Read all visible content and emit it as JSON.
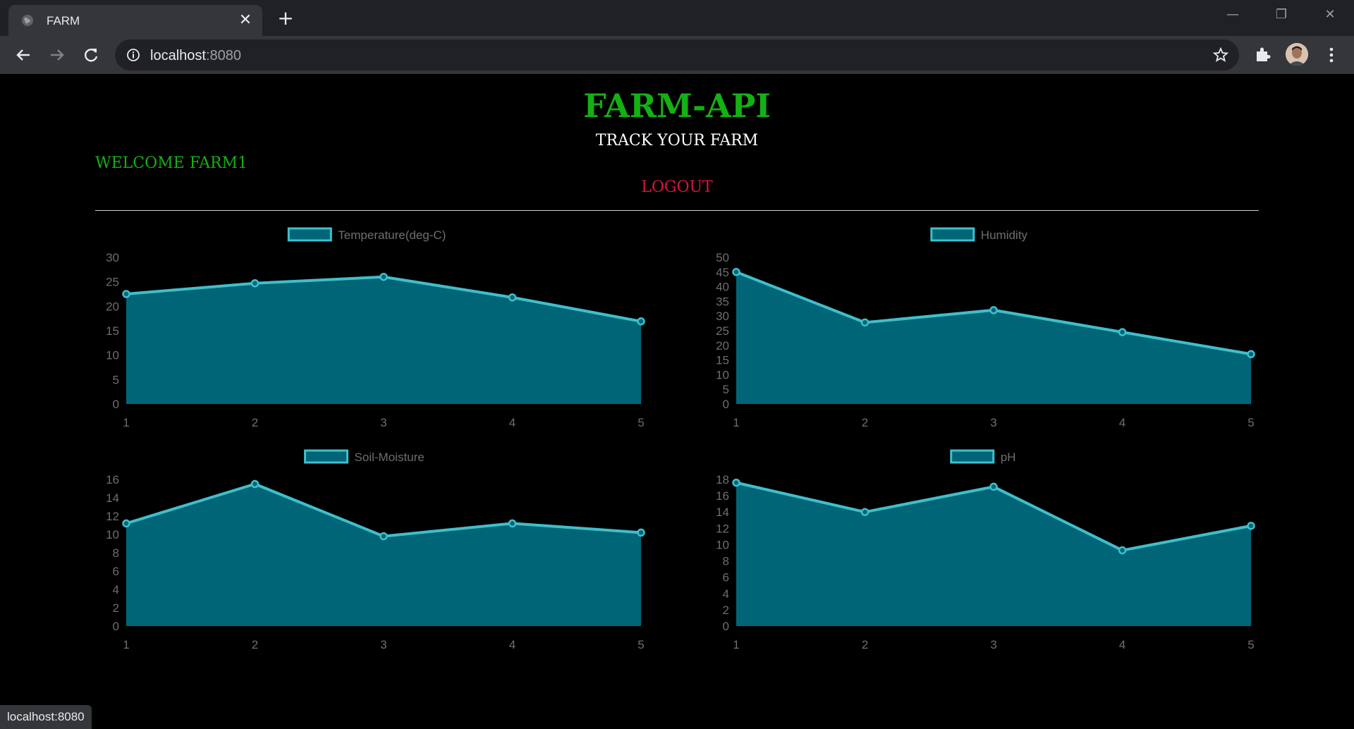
{
  "browser": {
    "tab_title": "FARM",
    "url_host": "localhost",
    "url_port": ":8080",
    "status_text": "localhost:8080",
    "icons": [
      "globe-icon",
      "close-icon",
      "plus-icon",
      "minimize-icon",
      "restore-icon",
      "back-icon",
      "forward-icon",
      "reload-icon",
      "info-icon",
      "star-icon",
      "extensions-icon",
      "avatar",
      "menu-icon"
    ]
  },
  "page": {
    "title": "FARM-API",
    "subtitle": "TRACK YOUR FARM",
    "welcome": "WELCOME FARM1",
    "logout": "LOGOUT"
  },
  "colors": {
    "title": "#14b014",
    "logout": "#dc143c",
    "series_line": "#3fbfcc",
    "series_fill": "#006677"
  },
  "chart_data": [
    {
      "type": "area",
      "legend": [
        "Temperature(deg-C)"
      ],
      "legend_position": "top",
      "x": [
        1,
        2,
        3,
        4,
        5
      ],
      "yticks": [
        0,
        5,
        10,
        15,
        20,
        25,
        30
      ],
      "ylim": [
        0,
        30
      ],
      "series": [
        {
          "name": "Temperature(deg-C)",
          "values": [
            22.5,
            24.7,
            26,
            21.8,
            16.9
          ]
        }
      ]
    },
    {
      "type": "area",
      "legend": [
        "Humidity"
      ],
      "legend_position": "top",
      "x": [
        1,
        2,
        3,
        4,
        5
      ],
      "yticks": [
        0,
        5,
        10,
        15,
        20,
        25,
        30,
        35,
        40,
        45,
        50
      ],
      "ylim": [
        0,
        50
      ],
      "series": [
        {
          "name": "Humidity",
          "values": [
            45,
            27.8,
            32,
            24.5,
            17
          ]
        }
      ]
    },
    {
      "type": "area",
      "legend": [
        "Soil-Moisture"
      ],
      "legend_position": "top",
      "x": [
        1,
        2,
        3,
        4,
        5
      ],
      "yticks": [
        0,
        2,
        4,
        6,
        8,
        10,
        12,
        14,
        16
      ],
      "ylim": [
        0,
        16
      ],
      "series": [
        {
          "name": "Soil-Moisture",
          "values": [
            11.2,
            15.5,
            9.8,
            11.2,
            10.2
          ]
        }
      ]
    },
    {
      "type": "area",
      "legend": [
        "pH"
      ],
      "legend_position": "top",
      "x": [
        1,
        2,
        3,
        4,
        5
      ],
      "yticks": [
        0,
        2,
        4,
        6,
        8,
        10,
        12,
        14,
        16,
        18
      ],
      "ylim": [
        0,
        18
      ],
      "series": [
        {
          "name": "pH",
          "values": [
            17.6,
            14,
            17.1,
            9.3,
            12.3
          ]
        }
      ]
    }
  ]
}
